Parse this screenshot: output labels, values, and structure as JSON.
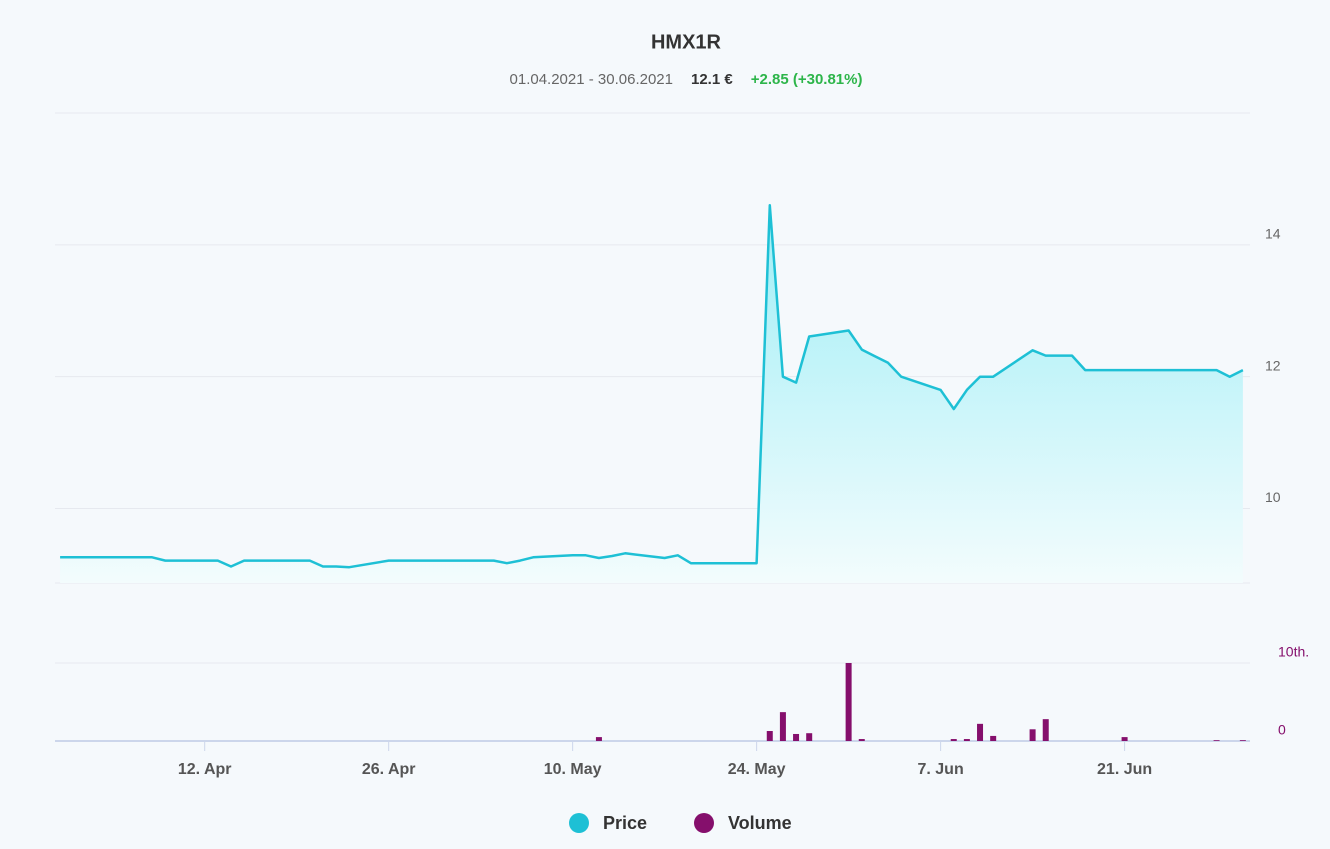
{
  "chart_data": [
    {
      "type": "line",
      "title": "HMX1R",
      "subtitle": {
        "date_range": "01.04.2021 - 30.06.2021",
        "last_price": "12.1 €",
        "change": "+2.85 (+30.81%)"
      },
      "x": [
        "2021-04-01",
        "2021-04-05",
        "2021-04-06",
        "2021-04-07",
        "2021-04-08",
        "2021-04-09",
        "2021-04-12",
        "2021-04-13",
        "2021-04-14",
        "2021-04-15",
        "2021-04-16",
        "2021-04-19",
        "2021-04-20",
        "2021-04-21",
        "2021-04-22",
        "2021-04-23",
        "2021-04-26",
        "2021-04-27",
        "2021-04-28",
        "2021-04-29",
        "2021-04-30",
        "2021-05-03",
        "2021-05-04",
        "2021-05-05",
        "2021-05-06",
        "2021-05-07",
        "2021-05-10",
        "2021-05-11",
        "2021-05-12",
        "2021-05-13",
        "2021-05-14",
        "2021-05-17",
        "2021-05-18",
        "2021-05-19",
        "2021-05-20",
        "2021-05-21",
        "2021-05-24",
        "2021-05-25",
        "2021-05-26",
        "2021-05-27",
        "2021-05-28",
        "2021-05-31",
        "2021-06-01",
        "2021-06-02",
        "2021-06-03",
        "2021-06-04",
        "2021-06-07",
        "2021-06-08",
        "2021-06-09",
        "2021-06-10",
        "2021-06-11",
        "2021-06-14",
        "2021-06-15",
        "2021-06-16",
        "2021-06-17",
        "2021-06-18",
        "2021-06-21",
        "2021-06-22",
        "2021-06-23",
        "2021-06-24",
        "2021-06-25",
        "2021-06-28",
        "2021-06-29",
        "2021-06-30"
      ],
      "series": [
        {
          "name": "Price",
          "color": "#1ec0d5",
          "values": [
            9.26,
            9.26,
            9.26,
            9.26,
            9.26,
            9.21,
            9.21,
            9.21,
            9.12,
            9.21,
            9.21,
            9.21,
            9.21,
            9.12,
            9.12,
            9.11,
            9.21,
            9.21,
            9.21,
            9.21,
            9.21,
            9.21,
            9.21,
            9.17,
            9.21,
            9.26,
            9.29,
            9.29,
            9.25,
            9.28,
            9.32,
            9.25,
            9.29,
            9.17,
            9.17,
            9.17,
            9.17,
            14.6,
            12.0,
            11.91,
            12.61,
            12.7,
            12.41,
            12.31,
            12.21,
            12.0,
            11.8,
            11.51,
            11.8,
            12.0,
            12.0,
            12.4,
            12.32,
            12.32,
            12.32,
            12.1,
            12.1,
            12.1,
            12.1,
            12.1,
            12.1,
            12.1,
            12.0,
            12.1
          ]
        }
      ],
      "xlim": [
        "2021-03-31",
        "2021-07-01"
      ],
      "xticks": [
        {
          "value": "2021-04-12",
          "label": "12. Apr"
        },
        {
          "value": "2021-04-26",
          "label": "26. Apr"
        },
        {
          "value": "2021-05-10",
          "label": "10. May"
        },
        {
          "value": "2021-05-24",
          "label": "24. May"
        },
        {
          "value": "2021-06-07",
          "label": "7. Jun"
        },
        {
          "value": "2021-06-21",
          "label": "21. Jun"
        }
      ],
      "ylim": [
        8.87,
        16
      ],
      "yticks": [
        10,
        12,
        14
      ],
      "grid": true
    },
    {
      "type": "bar",
      "x": [
        "2021-05-12",
        "2021-05-25",
        "2021-05-26",
        "2021-05-27",
        "2021-05-28",
        "2021-05-31",
        "2021-06-01",
        "2021-06-08",
        "2021-06-09",
        "2021-06-10",
        "2021-06-11",
        "2021-06-14",
        "2021-06-15",
        "2021-06-21",
        "2021-06-28",
        "2021-06-30"
      ],
      "series": [
        {
          "name": "Volume",
          "color": "#850f6c",
          "values": [
            500,
            1280,
            3700,
            900,
            1000,
            10000,
            250,
            250,
            250,
            2200,
            650,
            1500,
            2800,
            500,
            100,
            100
          ]
        }
      ],
      "ylim": [
        0,
        10000
      ],
      "yticks": [
        0,
        {
          "value": 10000,
          "label": "10th."
        }
      ],
      "grid": true
    }
  ]
}
